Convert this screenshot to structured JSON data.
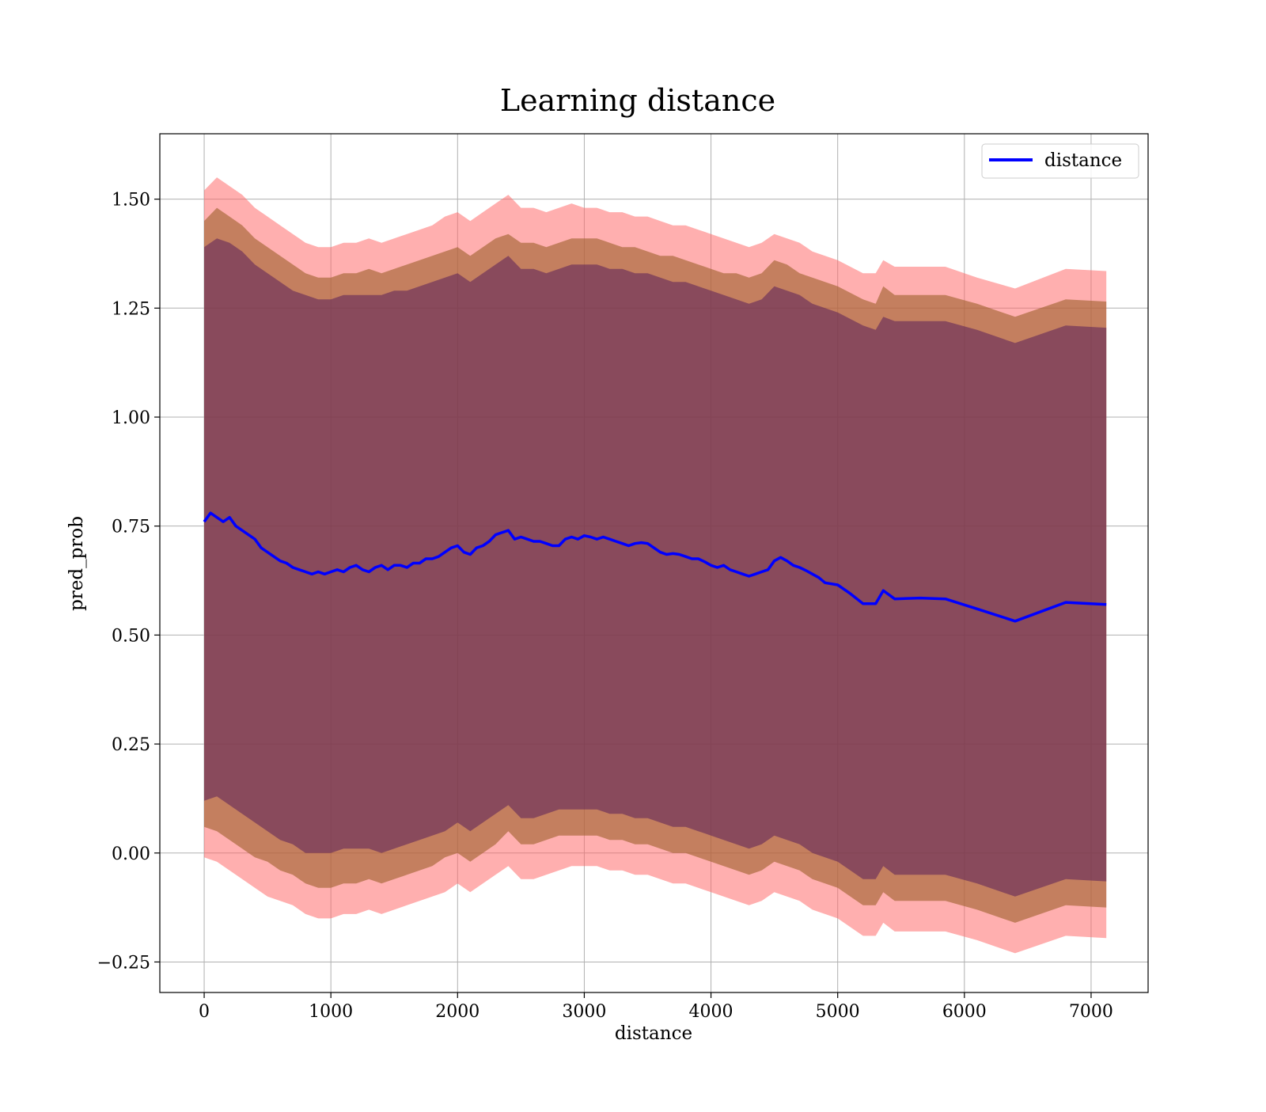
{
  "chart_data": {
    "type": "line",
    "title": "Learning distance",
    "xlabel": "distance",
    "ylabel": "pred_prob",
    "xlim": [
      -350,
      7450
    ],
    "ylim": [
      -0.32,
      1.65
    ],
    "xticks": [
      0,
      1000,
      2000,
      3000,
      4000,
      5000,
      6000,
      7000
    ],
    "xtick_labels": [
      "0",
      "1000",
      "2000",
      "3000",
      "4000",
      "5000",
      "6000",
      "7000"
    ],
    "yticks": [
      -0.25,
      0.0,
      0.25,
      0.5,
      0.75,
      1.0,
      1.25,
      1.5
    ],
    "ytick_labels": [
      "−0.25",
      "0.00",
      "0.25",
      "0.50",
      "0.75",
      "1.00",
      "1.25",
      "1.50"
    ],
    "grid": true,
    "legend": {
      "position": "top-right",
      "entries": [
        "distance"
      ]
    },
    "colors": {
      "line": "#0000ff",
      "band_outer": "#ff6666",
      "band_middle": "#a0622e",
      "band_inner": "#5a1f5a",
      "grid": "#b0b0b0"
    },
    "series": [
      {
        "name": "distance",
        "x": [
          0,
          50,
          100,
          150,
          200,
          250,
          300,
          350,
          400,
          450,
          500,
          550,
          600,
          650,
          700,
          750,
          800,
          850,
          900,
          950,
          1000,
          1050,
          1100,
          1150,
          1200,
          1250,
          1300,
          1350,
          1400,
          1450,
          1500,
          1550,
          1600,
          1650,
          1700,
          1750,
          1800,
          1850,
          1900,
          1950,
          2000,
          2050,
          2100,
          2150,
          2200,
          2250,
          2300,
          2350,
          2400,
          2450,
          2500,
          2550,
          2600,
          2650,
          2700,
          2750,
          2800,
          2850,
          2900,
          2950,
          3000,
          3050,
          3100,
          3150,
          3200,
          3250,
          3300,
          3350,
          3400,
          3450,
          3500,
          3550,
          3600,
          3650,
          3700,
          3750,
          3800,
          3850,
          3900,
          3950,
          4000,
          4050,
          4100,
          4150,
          4200,
          4250,
          4300,
          4350,
          4400,
          4450,
          4500,
          4550,
          4600,
          4650,
          4700,
          4750,
          4800,
          4850,
          4900,
          5000,
          5100,
          5200,
          5300,
          5360,
          5450,
          5650,
          5850,
          6100,
          6400,
          6800,
          7120
        ],
        "y": [
          0.76,
          0.78,
          0.77,
          0.76,
          0.77,
          0.75,
          0.74,
          0.73,
          0.72,
          0.7,
          0.69,
          0.68,
          0.67,
          0.665,
          0.655,
          0.65,
          0.645,
          0.64,
          0.645,
          0.64,
          0.645,
          0.65,
          0.645,
          0.655,
          0.66,
          0.65,
          0.645,
          0.655,
          0.66,
          0.65,
          0.66,
          0.66,
          0.655,
          0.665,
          0.665,
          0.675,
          0.675,
          0.68,
          0.69,
          0.7,
          0.705,
          0.69,
          0.685,
          0.7,
          0.705,
          0.715,
          0.73,
          0.735,
          0.74,
          0.72,
          0.725,
          0.72,
          0.715,
          0.715,
          0.71,
          0.705,
          0.705,
          0.72,
          0.725,
          0.72,
          0.728,
          0.725,
          0.72,
          0.725,
          0.72,
          0.715,
          0.71,
          0.705,
          0.71,
          0.712,
          0.71,
          0.7,
          0.69,
          0.685,
          0.687,
          0.685,
          0.68,
          0.675,
          0.675,
          0.668,
          0.66,
          0.655,
          0.66,
          0.65,
          0.645,
          0.64,
          0.635,
          0.64,
          0.645,
          0.65,
          0.67,
          0.678,
          0.67,
          0.66,
          0.655,
          0.648,
          0.64,
          0.632,
          0.62,
          0.615,
          0.595,
          0.572,
          0.572,
          0.602,
          0.583,
          0.585,
          0.583,
          0.56,
          0.532,
          0.575,
          0.57
        ]
      }
    ],
    "bands": [
      {
        "label": "outer",
        "x": [
          0,
          100,
          200,
          300,
          400,
          500,
          600,
          700,
          800,
          900,
          1000,
          1100,
          1200,
          1300,
          1400,
          1500,
          1600,
          1700,
          1800,
          1900,
          2000,
          2100,
          2200,
          2300,
          2400,
          2500,
          2600,
          2700,
          2800,
          2900,
          3000,
          3100,
          3200,
          3300,
          3400,
          3500,
          3600,
          3700,
          3800,
          3900,
          4000,
          4100,
          4200,
          4300,
          4400,
          4500,
          4600,
          4700,
          4800,
          4900,
          5000,
          5200,
          5300,
          5360,
          5450,
          5650,
          5850,
          6100,
          6400,
          6800,
          7120
        ],
        "upper": [
          1.52,
          1.55,
          1.53,
          1.51,
          1.48,
          1.46,
          1.44,
          1.42,
          1.4,
          1.39,
          1.39,
          1.4,
          1.4,
          1.41,
          1.4,
          1.41,
          1.42,
          1.43,
          1.44,
          1.46,
          1.47,
          1.45,
          1.47,
          1.49,
          1.51,
          1.48,
          1.48,
          1.47,
          1.48,
          1.49,
          1.48,
          1.48,
          1.47,
          1.47,
          1.46,
          1.46,
          1.45,
          1.44,
          1.44,
          1.43,
          1.42,
          1.41,
          1.4,
          1.39,
          1.4,
          1.42,
          1.41,
          1.4,
          1.38,
          1.37,
          1.36,
          1.33,
          1.33,
          1.36,
          1.345,
          1.345,
          1.345,
          1.32,
          1.295,
          1.34,
          1.335
        ],
        "lower": [
          -0.01,
          -0.02,
          -0.04,
          -0.06,
          -0.08,
          -0.1,
          -0.11,
          -0.12,
          -0.14,
          -0.15,
          -0.15,
          -0.14,
          -0.14,
          -0.13,
          -0.14,
          -0.13,
          -0.12,
          -0.11,
          -0.1,
          -0.09,
          -0.07,
          -0.09,
          -0.07,
          -0.05,
          -0.03,
          -0.06,
          -0.06,
          -0.05,
          -0.04,
          -0.03,
          -0.03,
          -0.03,
          -0.04,
          -0.04,
          -0.05,
          -0.05,
          -0.06,
          -0.07,
          -0.07,
          -0.08,
          -0.09,
          -0.1,
          -0.11,
          -0.12,
          -0.11,
          -0.09,
          -0.1,
          -0.11,
          -0.13,
          -0.14,
          -0.15,
          -0.19,
          -0.19,
          -0.16,
          -0.18,
          -0.18,
          -0.18,
          -0.2,
          -0.23,
          -0.19,
          -0.195
        ]
      },
      {
        "label": "middle",
        "x": [
          0,
          100,
          200,
          300,
          400,
          500,
          600,
          700,
          800,
          900,
          1000,
          1100,
          1200,
          1300,
          1400,
          1500,
          1600,
          1700,
          1800,
          1900,
          2000,
          2100,
          2200,
          2300,
          2400,
          2500,
          2600,
          2700,
          2800,
          2900,
          3000,
          3100,
          3200,
          3300,
          3400,
          3500,
          3600,
          3700,
          3800,
          3900,
          4000,
          4100,
          4200,
          4300,
          4400,
          4500,
          4600,
          4700,
          4800,
          4900,
          5000,
          5200,
          5300,
          5360,
          5450,
          5650,
          5850,
          6100,
          6400,
          6800,
          7120
        ],
        "upper": [
          1.45,
          1.48,
          1.46,
          1.44,
          1.41,
          1.39,
          1.37,
          1.35,
          1.33,
          1.32,
          1.32,
          1.33,
          1.33,
          1.34,
          1.33,
          1.34,
          1.35,
          1.36,
          1.37,
          1.38,
          1.39,
          1.37,
          1.39,
          1.41,
          1.42,
          1.4,
          1.4,
          1.39,
          1.4,
          1.41,
          1.41,
          1.41,
          1.4,
          1.39,
          1.39,
          1.38,
          1.37,
          1.37,
          1.36,
          1.35,
          1.34,
          1.33,
          1.33,
          1.32,
          1.33,
          1.36,
          1.35,
          1.33,
          1.32,
          1.31,
          1.3,
          1.27,
          1.26,
          1.3,
          1.28,
          1.28,
          1.28,
          1.26,
          1.23,
          1.27,
          1.265
        ],
        "lower": [
          0.06,
          0.05,
          0.03,
          0.01,
          -0.01,
          -0.02,
          -0.04,
          -0.05,
          -0.07,
          -0.08,
          -0.08,
          -0.07,
          -0.07,
          -0.06,
          -0.07,
          -0.06,
          -0.05,
          -0.04,
          -0.03,
          -0.01,
          0.0,
          -0.02,
          0.0,
          0.02,
          0.05,
          0.02,
          0.02,
          0.03,
          0.04,
          0.04,
          0.04,
          0.04,
          0.03,
          0.03,
          0.02,
          0.02,
          0.01,
          0.0,
          0.0,
          -0.01,
          -0.02,
          -0.03,
          -0.04,
          -0.05,
          -0.04,
          -0.02,
          -0.03,
          -0.04,
          -0.06,
          -0.07,
          -0.08,
          -0.12,
          -0.12,
          -0.09,
          -0.11,
          -0.11,
          -0.11,
          -0.13,
          -0.16,
          -0.12,
          -0.125
        ]
      },
      {
        "label": "inner",
        "x": [
          0,
          100,
          200,
          300,
          400,
          500,
          600,
          700,
          800,
          900,
          1000,
          1100,
          1200,
          1300,
          1400,
          1500,
          1600,
          1700,
          1800,
          1900,
          2000,
          2100,
          2200,
          2300,
          2400,
          2500,
          2600,
          2700,
          2800,
          2900,
          3000,
          3100,
          3200,
          3300,
          3400,
          3500,
          3600,
          3700,
          3800,
          3900,
          4000,
          4100,
          4200,
          4300,
          4400,
          4500,
          4600,
          4700,
          4800,
          4900,
          5000,
          5200,
          5300,
          5360,
          5450,
          5650,
          5850,
          6100,
          6400,
          6800,
          7120
        ],
        "upper": [
          1.39,
          1.41,
          1.4,
          1.38,
          1.35,
          1.33,
          1.31,
          1.29,
          1.28,
          1.27,
          1.27,
          1.28,
          1.28,
          1.28,
          1.28,
          1.29,
          1.29,
          1.3,
          1.31,
          1.32,
          1.33,
          1.31,
          1.33,
          1.35,
          1.37,
          1.34,
          1.34,
          1.33,
          1.34,
          1.35,
          1.35,
          1.35,
          1.34,
          1.34,
          1.33,
          1.33,
          1.32,
          1.31,
          1.31,
          1.3,
          1.29,
          1.28,
          1.27,
          1.26,
          1.27,
          1.3,
          1.29,
          1.28,
          1.26,
          1.25,
          1.24,
          1.21,
          1.2,
          1.23,
          1.22,
          1.22,
          1.22,
          1.2,
          1.17,
          1.21,
          1.205
        ],
        "lower": [
          0.12,
          0.13,
          0.11,
          0.09,
          0.07,
          0.05,
          0.03,
          0.02,
          0.0,
          0.0,
          0.0,
          0.01,
          0.01,
          0.01,
          0.0,
          0.01,
          0.02,
          0.03,
          0.04,
          0.05,
          0.07,
          0.05,
          0.07,
          0.09,
          0.11,
          0.08,
          0.08,
          0.09,
          0.1,
          0.1,
          0.1,
          0.1,
          0.09,
          0.09,
          0.08,
          0.08,
          0.07,
          0.06,
          0.06,
          0.05,
          0.04,
          0.03,
          0.02,
          0.01,
          0.02,
          0.04,
          0.03,
          0.02,
          0.0,
          -0.01,
          -0.02,
          -0.06,
          -0.06,
          -0.03,
          -0.05,
          -0.05,
          -0.05,
          -0.07,
          -0.1,
          -0.06,
          -0.065
        ]
      }
    ]
  }
}
